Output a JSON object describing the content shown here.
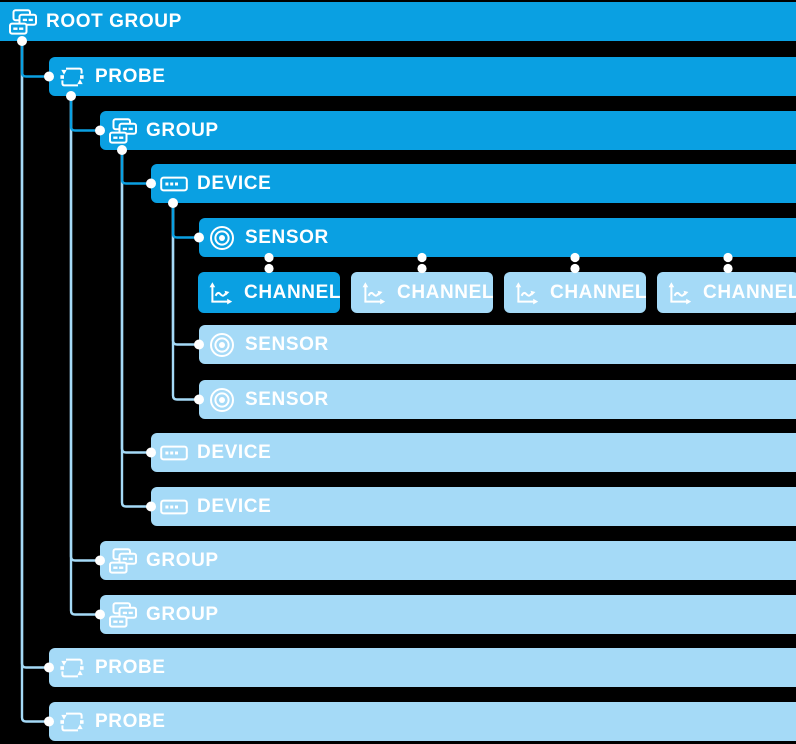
{
  "diagram": {
    "description": "Object hierarchy tree diagram",
    "colors": {
      "primary": "#0AA0E2",
      "secondary": "#A5DAF7",
      "background": "#000000",
      "text": "#FFFFFF",
      "dot": "#FFFFFF"
    },
    "nodes": [
      {
        "id": "root-group",
        "label": "ROOT GROUP",
        "type": "group",
        "icon": "group-icon",
        "variant": "primary",
        "level": 0,
        "row": 0,
        "parent": null
      },
      {
        "id": "probe-1",
        "label": "PROBE",
        "type": "probe",
        "icon": "probe-icon",
        "variant": "primary",
        "level": 1,
        "row": 1,
        "parent": "root-group"
      },
      {
        "id": "group-1",
        "label": "GROUP",
        "type": "group",
        "icon": "group-icon",
        "variant": "primary",
        "level": 2,
        "row": 2,
        "parent": "probe-1"
      },
      {
        "id": "device-1",
        "label": "DEVICE",
        "type": "device",
        "icon": "device-icon",
        "variant": "primary",
        "level": 3,
        "row": 3,
        "parent": "group-1"
      },
      {
        "id": "sensor-1",
        "label": "SENSOR",
        "type": "sensor",
        "icon": "sensor-icon",
        "variant": "primary",
        "level": 4,
        "row": 4,
        "parent": "device-1"
      },
      {
        "id": "channel-1",
        "label": "CHANNEL",
        "type": "channel",
        "icon": "channel-icon",
        "variant": "primary",
        "level": 5,
        "row": 5,
        "col": 0,
        "parent": "sensor-1"
      },
      {
        "id": "channel-2",
        "label": "CHANNEL",
        "type": "channel",
        "icon": "channel-icon",
        "variant": "secondary",
        "level": 5,
        "row": 5,
        "col": 1,
        "parent": "sensor-1"
      },
      {
        "id": "channel-3",
        "label": "CHANNEL",
        "type": "channel",
        "icon": "channel-icon",
        "variant": "secondary",
        "level": 5,
        "row": 5,
        "col": 2,
        "parent": "sensor-1"
      },
      {
        "id": "channel-4",
        "label": "CHANNEL",
        "type": "channel",
        "icon": "channel-icon",
        "variant": "secondary",
        "level": 5,
        "row": 5,
        "col": 3,
        "parent": "sensor-1"
      },
      {
        "id": "sensor-2",
        "label": "SENSOR",
        "type": "sensor",
        "icon": "sensor-icon",
        "variant": "secondary",
        "level": 4,
        "row": 6,
        "parent": "device-1"
      },
      {
        "id": "sensor-3",
        "label": "SENSOR",
        "type": "sensor",
        "icon": "sensor-icon",
        "variant": "secondary",
        "level": 4,
        "row": 7,
        "parent": "device-1"
      },
      {
        "id": "device-2",
        "label": "DEVICE",
        "type": "device",
        "icon": "device-icon",
        "variant": "secondary",
        "level": 3,
        "row": 8,
        "parent": "group-1"
      },
      {
        "id": "device-3",
        "label": "DEVICE",
        "type": "device",
        "icon": "device-icon",
        "variant": "secondary",
        "level": 3,
        "row": 9,
        "parent": "group-1"
      },
      {
        "id": "group-2",
        "label": "GROUP",
        "type": "group",
        "icon": "group-icon",
        "variant": "secondary",
        "level": 2,
        "row": 10,
        "parent": "probe-1"
      },
      {
        "id": "group-3",
        "label": "GROUP",
        "type": "group",
        "icon": "group-icon",
        "variant": "secondary",
        "level": 2,
        "row": 11,
        "parent": "probe-1"
      },
      {
        "id": "probe-2",
        "label": "PROBE",
        "type": "probe",
        "icon": "probe-icon",
        "variant": "secondary",
        "level": 1,
        "row": 12,
        "parent": "root-group"
      },
      {
        "id": "probe-3",
        "label": "PROBE",
        "type": "probe",
        "icon": "probe-icon",
        "variant": "secondary",
        "level": 1,
        "row": 13,
        "parent": "root-group"
      }
    ]
  }
}
